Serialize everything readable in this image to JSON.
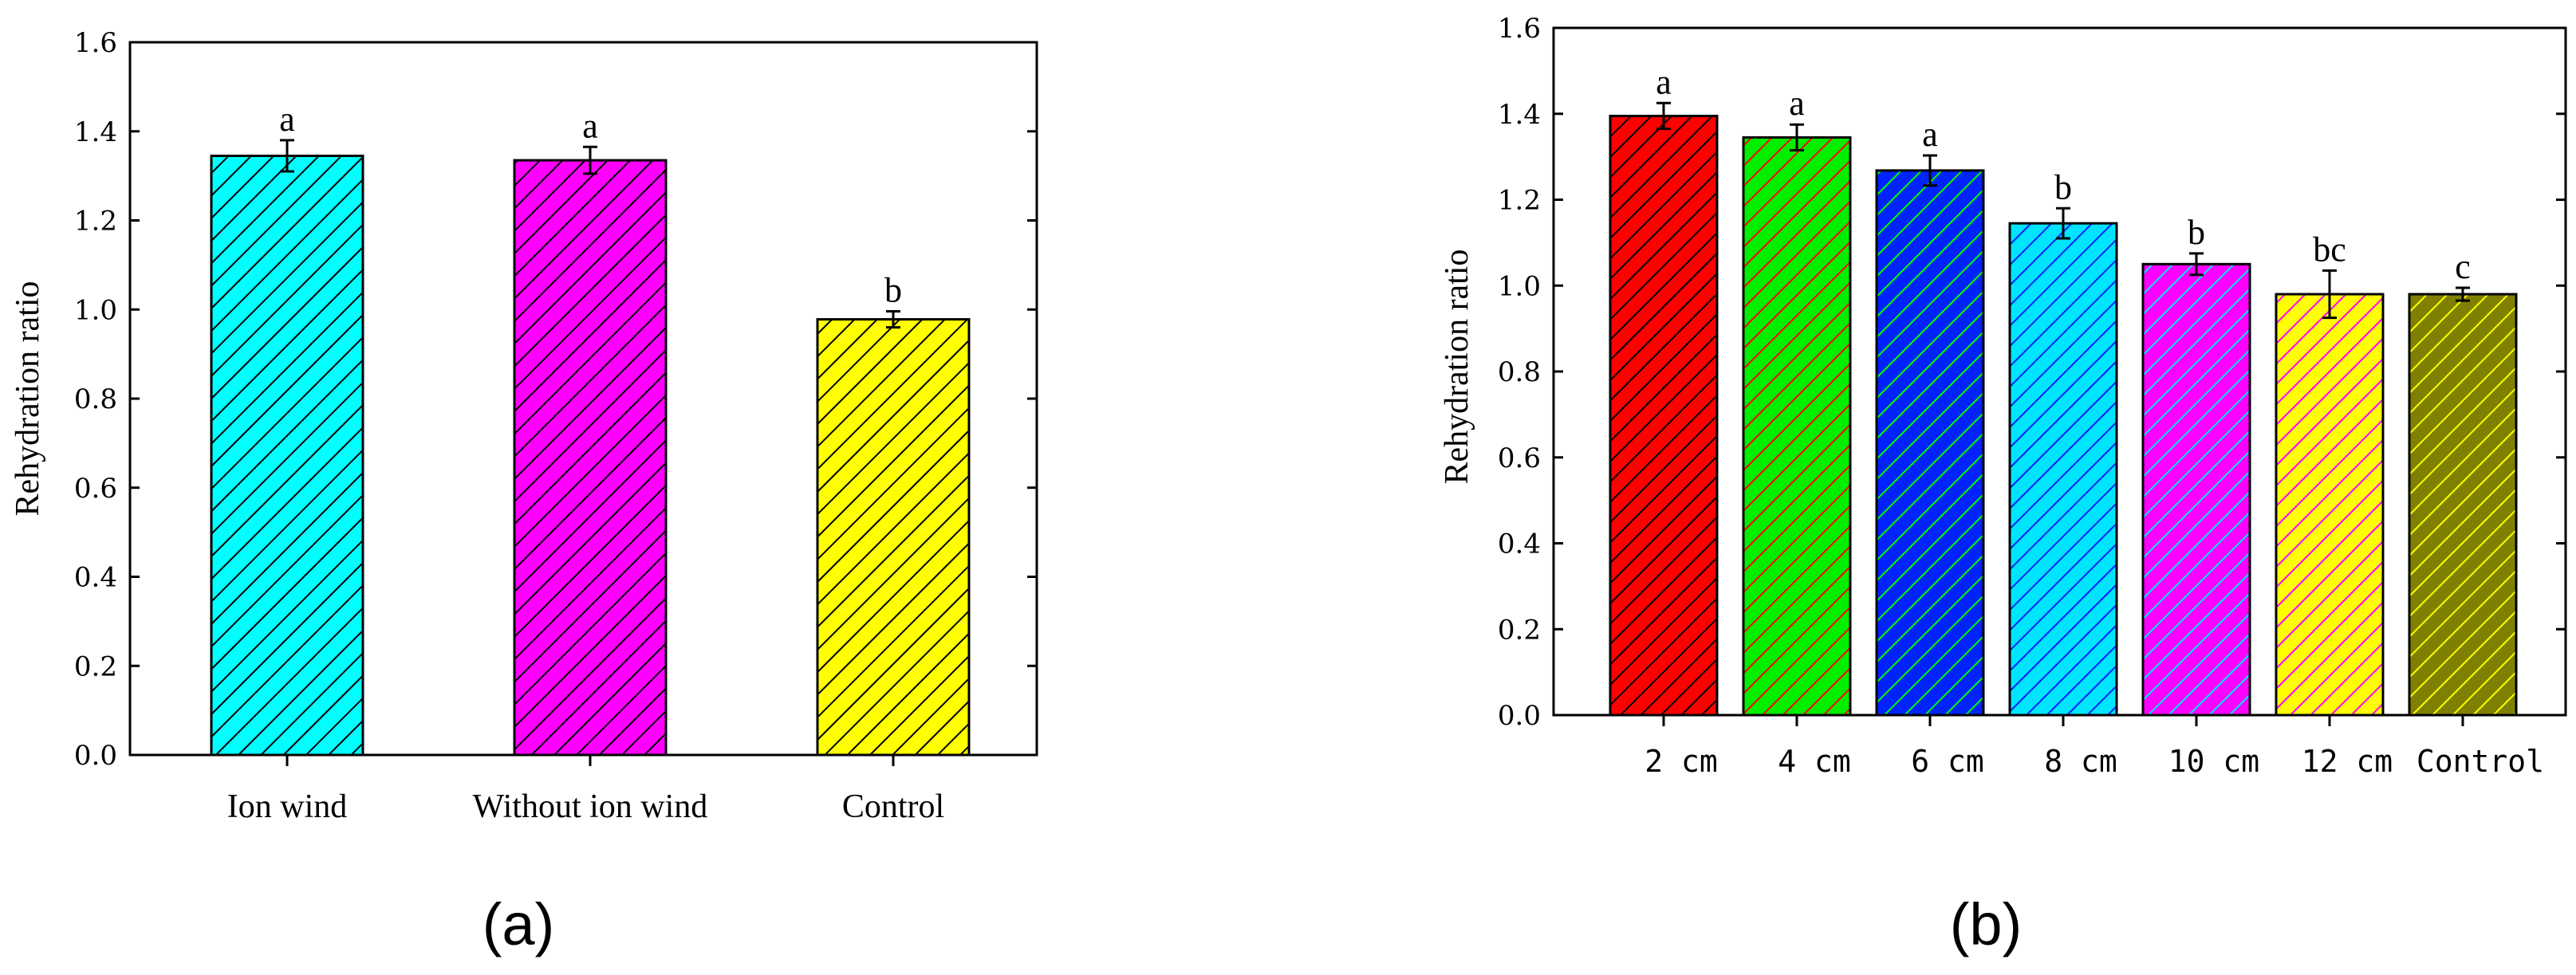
{
  "chart_data": [
    {
      "type": "bar",
      "panel_label": "(a)",
      "ylabel": "Rehydration ratio",
      "xlabel": "",
      "ylim": [
        0,
        1.6
      ],
      "yticks": [
        "0.0",
        "0.2",
        "0.4",
        "0.6",
        "0.8",
        "1.0",
        "1.2",
        "1.4",
        "1.6"
      ],
      "categories": [
        "Ion wind",
        "Without ion wind",
        "Control"
      ],
      "values": [
        1.345,
        1.335,
        0.978
      ],
      "errors": [
        0.035,
        0.03,
        0.018
      ],
      "significance": [
        "a",
        "a",
        "b"
      ],
      "colors": [
        "#00ffff",
        "#ff00ff",
        "#ffff00"
      ],
      "hatch_color": "#000000",
      "grid": false
    },
    {
      "type": "bar",
      "panel_label": "(b)",
      "ylabel": "Rehydration ratio",
      "xlabel": "",
      "ylim": [
        0,
        1.6
      ],
      "yticks": [
        "0.0",
        "0.2",
        "0.4",
        "0.6",
        "0.8",
        "1.0",
        "1.2",
        "1.4",
        "1.6"
      ],
      "categories": [
        "2 cm",
        "4 cm",
        "6 cm",
        "8 cm",
        "10 cm",
        "12 cm",
        "Control"
      ],
      "values": [
        1.395,
        1.345,
        1.268,
        1.145,
        1.05,
        0.98,
        0.98
      ],
      "errors": [
        0.03,
        0.03,
        0.035,
        0.035,
        0.025,
        0.055,
        0.015
      ],
      "significance": [
        "a",
        "a",
        "a",
        "b",
        "b",
        "bc",
        "c"
      ],
      "colors": [
        "#ff0000",
        "#00ee00",
        "#0022ff",
        "#00e5ff",
        "#ff00ff",
        "#ffff00",
        "#808000"
      ],
      "hatch_colors": [
        "#000000",
        "#ff0000",
        "#00ff00",
        "#0022ff",
        "#00e5ff",
        "#ff00ff",
        "#ffff00"
      ],
      "grid": false
    }
  ]
}
